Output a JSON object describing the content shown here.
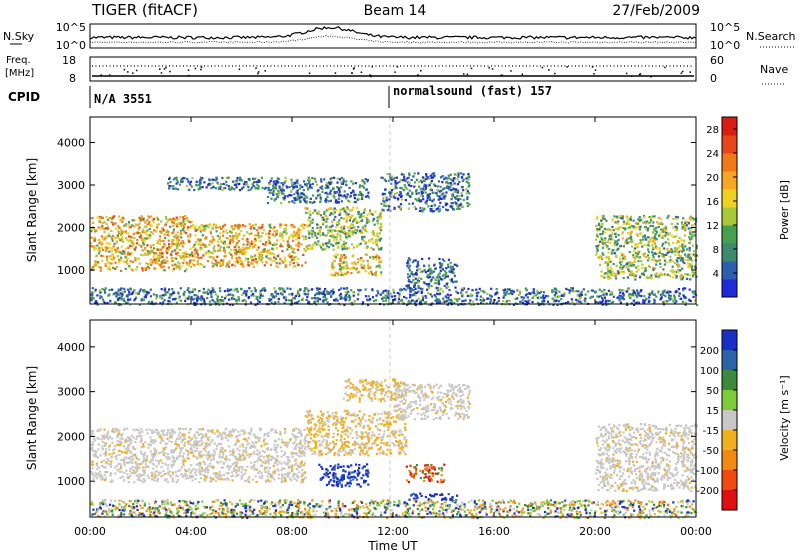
{
  "header": {
    "station": "TIGER (fitACF)",
    "beam": "Beam 14",
    "date": "27/Feb/2009"
  },
  "strip": {
    "nsky_label": "N.Sky",
    "nsearch_label": "N.Search",
    "nsky_ticks": [
      "10^5",
      "10^0"
    ],
    "nsearch_ticks": [
      "10^5",
      "10^0"
    ],
    "freq_label_1": "Freq.",
    "freq_label_2": "[MHz]",
    "freq_ticks": [
      "18",
      "8"
    ],
    "nave_label": "Nave",
    "nave_ticks": [
      "60",
      "0"
    ],
    "cpid_label": "CPID",
    "cpid_1": "N/A 3551",
    "cpid_2": "normalsound (fast) 157"
  },
  "chart_data": [
    {
      "type": "heatmap",
      "panel": "power",
      "xlabel": "Time UT",
      "ylabel": "Slant Range [km]",
      "xlim": [
        "00:00",
        "24:00"
      ],
      "ylim": [
        200,
        4600
      ],
      "x_ticks": [
        "00:00",
        "04:00",
        "08:00",
        "12:00",
        "16:00",
        "20:00",
        "00:00"
      ],
      "y_ticks": [
        1000,
        2000,
        3000,
        4000
      ],
      "colorbar": {
        "label": "Power [dB]",
        "ticks": [
          4,
          8,
          12,
          16,
          20,
          24,
          28
        ],
        "range": [
          0,
          30
        ],
        "colors": [
          "#1f2bd6",
          "#2d5fb0",
          "#3f8a6e",
          "#46a050",
          "#a8c83a",
          "#f0d020",
          "#f5a623",
          "#f07a1a",
          "#e8451a",
          "#d81e10"
        ]
      },
      "regions": [
        {
          "t": [
            0.0,
            4.0
          ],
          "r": [
            1000,
            2300
          ],
          "level": "high"
        },
        {
          "t": [
            4.0,
            8.5
          ],
          "r": [
            1100,
            2100
          ],
          "level": "high"
        },
        {
          "t": [
            8.5,
            11.5
          ],
          "r": [
            1500,
            2500
          ],
          "level": "mid"
        },
        {
          "t": [
            7.0,
            11.0
          ],
          "r": [
            2600,
            3200
          ],
          "level": "low"
        },
        {
          "t": [
            3.0,
            7.5
          ],
          "r": [
            2900,
            3200
          ],
          "level": "low"
        },
        {
          "t": [
            9.5,
            11.5
          ],
          "r": [
            900,
            1400
          ],
          "level": "high"
        },
        {
          "t": [
            11.5,
            15.0
          ],
          "r": [
            2400,
            3300
          ],
          "level": "low"
        },
        {
          "t": [
            12.5,
            14.5
          ],
          "r": [
            600,
            1300
          ],
          "level": "low"
        },
        {
          "t": [
            20.0,
            24.0
          ],
          "r": [
            800,
            2300
          ],
          "level": "mid"
        },
        {
          "t": [
            0.0,
            24.0
          ],
          "r": [
            200,
            600
          ],
          "level": "low"
        }
      ]
    },
    {
      "type": "heatmap",
      "panel": "velocity",
      "xlabel": "Time UT",
      "ylabel": "Slant Range [km]",
      "xlim": [
        "00:00",
        "24:00"
      ],
      "ylim": [
        200,
        4600
      ],
      "x_ticks": [
        "00:00",
        "04:00",
        "08:00",
        "12:00",
        "16:00",
        "20:00",
        "00:00"
      ],
      "y_ticks": [
        1000,
        2000,
        3000,
        4000
      ],
      "colorbar": {
        "label": "Velocity [m s⁻¹]",
        "ticks": [
          200,
          100,
          50,
          15,
          -15,
          -50,
          -100,
          -200
        ],
        "colors": [
          "#1a2fc8",
          "#2a63a8",
          "#3c8a3c",
          "#7ccc3a",
          "#c8c8c8",
          "#f0b020",
          "#f08a10",
          "#f04a10",
          "#e01010"
        ]
      },
      "regions": [
        {
          "t": [
            0.0,
            8.5
          ],
          "r": [
            1000,
            2200
          ],
          "value": "ground"
        },
        {
          "t": [
            8.5,
            12.5
          ],
          "r": [
            1600,
            2600
          ],
          "value": -30
        },
        {
          "t": [
            10.0,
            12.5
          ],
          "r": [
            2800,
            3300
          ],
          "value": -60
        },
        {
          "t": [
            12.0,
            15.0
          ],
          "r": [
            2400,
            3200
          ],
          "value": "ground"
        },
        {
          "t": [
            9.0,
            11.0
          ],
          "r": [
            900,
            1400
          ],
          "value": 200
        },
        {
          "t": [
            12.5,
            14.0
          ],
          "r": [
            1000,
            1400
          ],
          "value": -100
        },
        {
          "t": [
            12.5,
            14.5
          ],
          "r": [
            600,
            750
          ],
          "value": 200
        },
        {
          "t": [
            20.0,
            24.0
          ],
          "r": [
            800,
            2300
          ],
          "value": "ground"
        },
        {
          "t": [
            0.0,
            24.0
          ],
          "r": [
            200,
            600
          ],
          "value": "mixed"
        }
      ]
    }
  ]
}
